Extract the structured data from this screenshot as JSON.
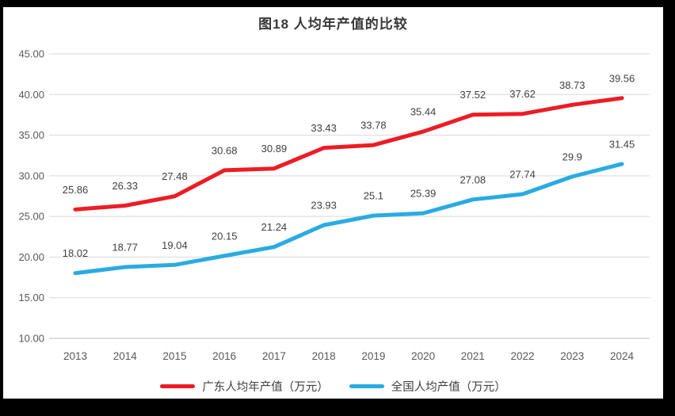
{
  "chart_data": {
    "type": "line",
    "title": "图18 人均年产值的比较",
    "categories": [
      "2013",
      "2014",
      "2015",
      "2016",
      "2017",
      "2018",
      "2019",
      "2020",
      "2021",
      "2022",
      "2023",
      "2024"
    ],
    "series": [
      {
        "name": "广东人均年产值（万元）",
        "color": "#ED1C24",
        "values": [
          25.86,
          26.33,
          27.48,
          30.68,
          30.89,
          33.43,
          33.78,
          35.44,
          37.52,
          37.62,
          38.73,
          39.56
        ],
        "labels": [
          "25.86",
          "26.33",
          "27.48",
          "30.68",
          "30.89",
          "33.43",
          "33.78",
          "35.44",
          "37.52",
          "37.62",
          "38.73",
          "39.56"
        ]
      },
      {
        "name": "全国人均产值（万元）",
        "color": "#29ABE2",
        "values": [
          18.02,
          18.77,
          19.04,
          20.15,
          21.24,
          23.93,
          25.1,
          25.39,
          27.08,
          27.74,
          29.9,
          31.45
        ],
        "labels": [
          "18.02",
          "18.77",
          "19.04",
          "20.15",
          "21.24",
          "23.93",
          "25.1",
          "25.39",
          "27.08",
          "27.74",
          "29.9",
          "31.45"
        ]
      }
    ],
    "ylim": [
      10,
      45
    ],
    "ytick_step": 5,
    "ytick_labels": [
      "10.00",
      "15.00",
      "20.00",
      "25.00",
      "30.00",
      "35.00",
      "40.00",
      "45.00"
    ],
    "grid": true,
    "data_labels": true,
    "legend_position": "bottom"
  },
  "styles": {
    "frame_background": "#000000",
    "card_background": "#FFFFFF",
    "grid_color": "#D9D9D9",
    "axis_line_color": "#BFBFBF",
    "tick_label_color": "#595959",
    "data_label_color": "#404040",
    "title_color": "#383838",
    "legend_text_color": "#404040"
  }
}
